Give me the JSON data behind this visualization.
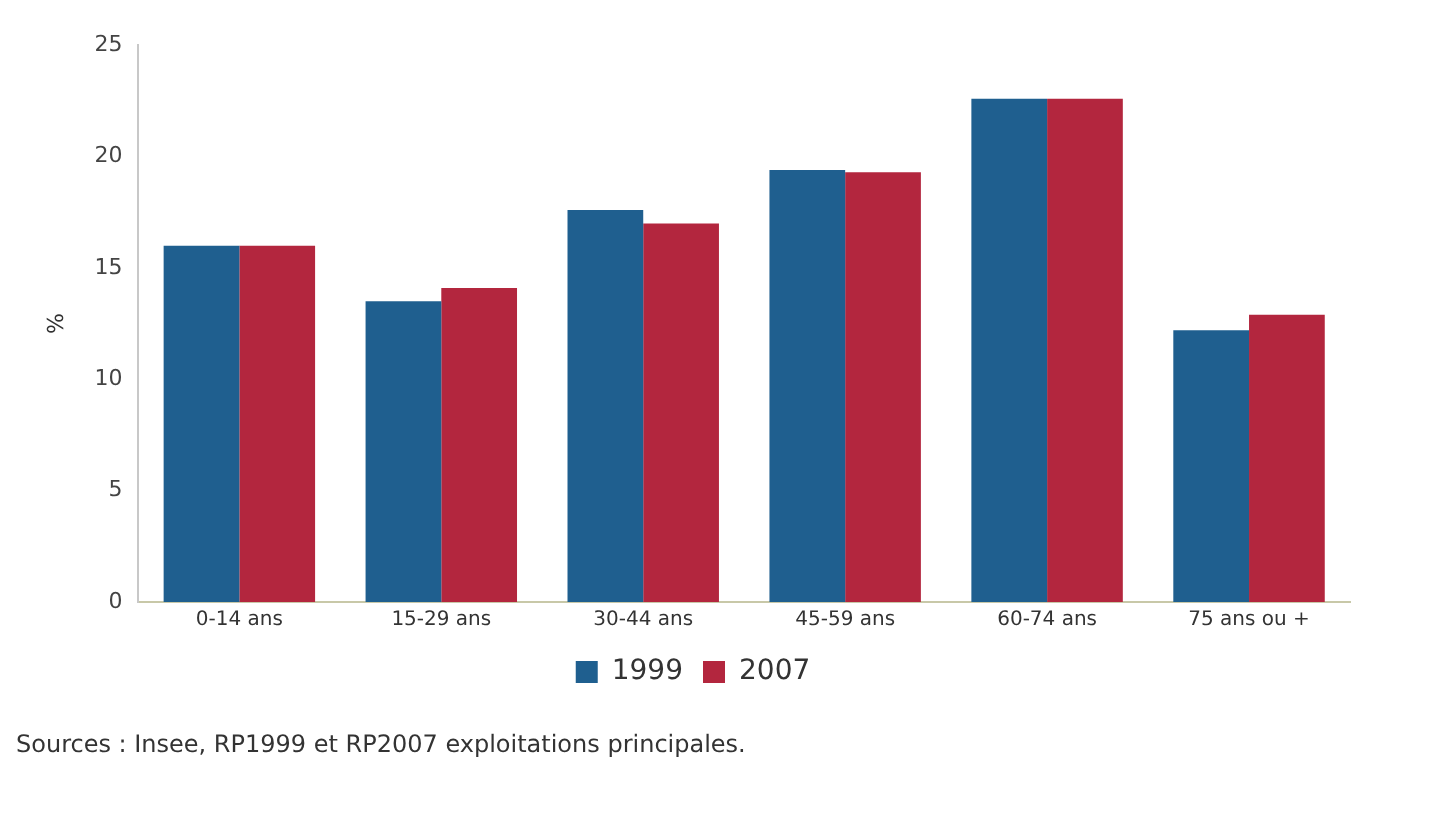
{
  "chart_data": {
    "type": "bar",
    "ylabel": "%",
    "categories": [
      "0-14 ans",
      "15-29 ans",
      "30-44 ans",
      "45-59 ans",
      "60-74 ans",
      "75 ans ou +"
    ],
    "series": [
      {
        "name": "1999",
        "color": "#1f5f8f",
        "values": [
          16.0,
          13.5,
          17.6,
          19.4,
          22.6,
          12.2
        ]
      },
      {
        "name": "2007",
        "color": "#b3263e",
        "values": [
          16.0,
          14.1,
          17.0,
          19.3,
          22.6,
          12.9
        ]
      }
    ],
    "ylim": [
      0,
      25
    ],
    "yticks": [
      0,
      5,
      10,
      15,
      20,
      25
    ],
    "grid": false,
    "legend": "bottom",
    "annotations": [
      "Sources : Insee, RP1999 et RP2007 exploitations principales."
    ]
  }
}
